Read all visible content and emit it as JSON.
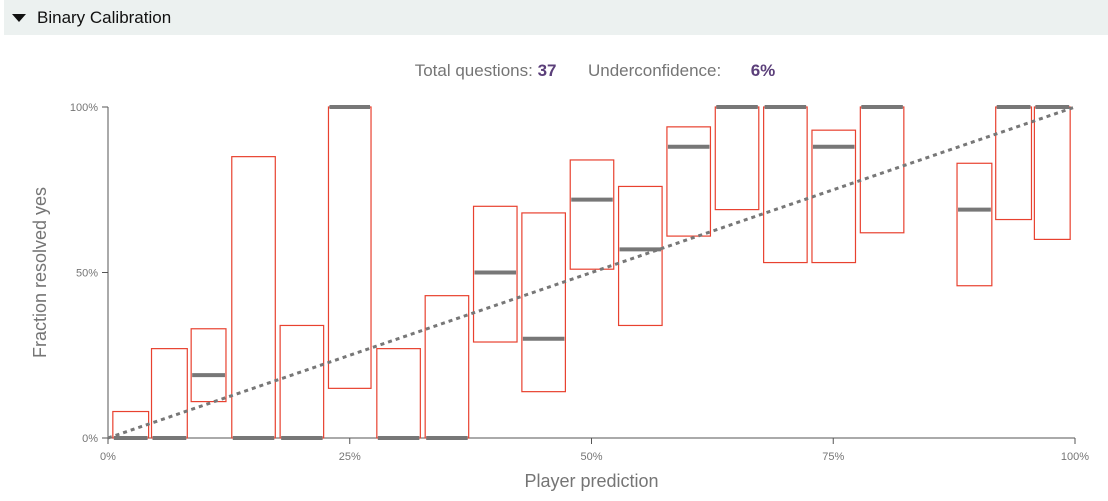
{
  "section": {
    "title": "Binary Calibration"
  },
  "stats": {
    "total_label": "Total questions:",
    "total_value": "37",
    "underconf_label": "Underconfidence:",
    "underconf_value": "6%"
  },
  "colors": {
    "box": "#e8412f",
    "mean": "#777777",
    "diagonal": "#777777",
    "axis": "#555555"
  },
  "chart_data": {
    "type": "bar",
    "xlabel": "Player prediction",
    "ylabel": "Fraction resolved yes",
    "xlim": [
      0,
      100
    ],
    "ylim": [
      0,
      100
    ],
    "x_ticks": [
      "0%",
      "25%",
      "50%",
      "75%",
      "100%"
    ],
    "y_ticks": [
      "0%",
      "50%",
      "100%"
    ],
    "diagonal": true,
    "bins": [
      {
        "x0": 0.5,
        "x1": 4.2,
        "low": 0,
        "high": 8,
        "mean": 0
      },
      {
        "x0": 4.5,
        "x1": 8.2,
        "low": 0,
        "high": 27,
        "mean": 0
      },
      {
        "x0": 8.6,
        "x1": 12.2,
        "low": 11,
        "high": 33,
        "mean": 19
      },
      {
        "x0": 12.8,
        "x1": 17.3,
        "low": 0,
        "high": 85,
        "mean": 0
      },
      {
        "x0": 17.8,
        "x1": 22.3,
        "low": 0,
        "high": 34,
        "mean": 0
      },
      {
        "x0": 22.8,
        "x1": 27.2,
        "low": 15,
        "high": 100,
        "mean": 100
      },
      {
        "x0": 27.8,
        "x1": 32.3,
        "low": 0,
        "high": 27,
        "mean": 0
      },
      {
        "x0": 32.8,
        "x1": 37.3,
        "low": 0,
        "high": 43,
        "mean": 0
      },
      {
        "x0": 37.8,
        "x1": 42.3,
        "low": 29,
        "high": 70,
        "mean": 50
      },
      {
        "x0": 42.8,
        "x1": 47.3,
        "low": 14,
        "high": 68,
        "mean": 30
      },
      {
        "x0": 47.8,
        "x1": 52.3,
        "low": 51,
        "high": 84,
        "mean": 72
      },
      {
        "x0": 52.8,
        "x1": 57.3,
        "low": 34,
        "high": 76,
        "mean": 57
      },
      {
        "x0": 57.8,
        "x1": 62.3,
        "low": 61,
        "high": 94,
        "mean": 88
      },
      {
        "x0": 62.8,
        "x1": 67.3,
        "low": 69,
        "high": 100,
        "mean": 100
      },
      {
        "x0": 67.8,
        "x1": 72.3,
        "low": 53,
        "high": 100,
        "mean": 100
      },
      {
        "x0": 72.8,
        "x1": 77.3,
        "low": 53,
        "high": 93,
        "mean": 88
      },
      {
        "x0": 77.8,
        "x1": 82.3,
        "low": 62,
        "high": 100,
        "mean": 100
      },
      {
        "x0": 87.8,
        "x1": 91.4,
        "low": 46,
        "high": 83,
        "mean": 69
      },
      {
        "x0": 91.8,
        "x1": 95.5,
        "low": 66,
        "high": 100,
        "mean": 100
      },
      {
        "x0": 95.8,
        "x1": 99.5,
        "low": 60,
        "high": 100,
        "mean": 100
      }
    ]
  }
}
